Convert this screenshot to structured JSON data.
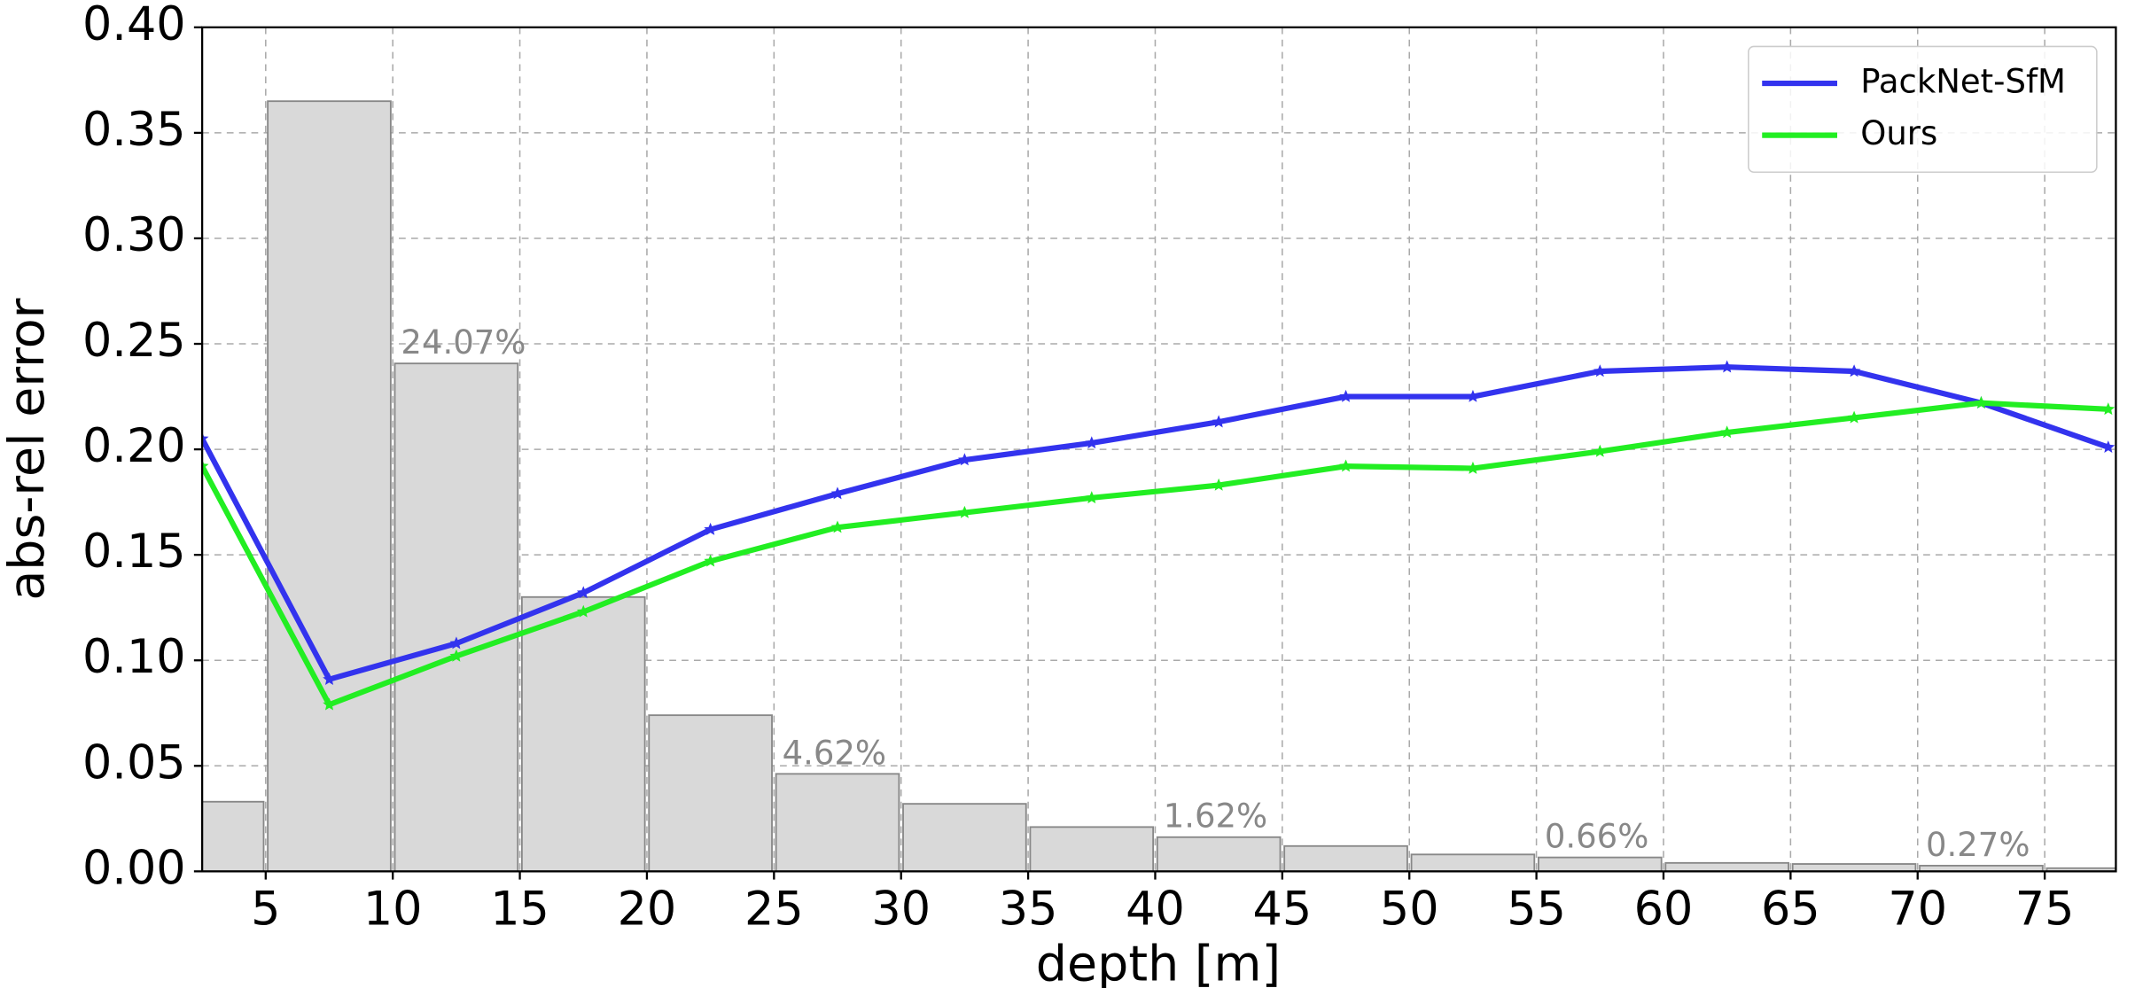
{
  "chart_data": {
    "type": "line",
    "xlabel": "depth [m]",
    "ylabel": "abs-rel error",
    "xlim": [
      2.5,
      77.8
    ],
    "ylim": [
      0,
      0.4
    ],
    "xticks": [
      5,
      10,
      15,
      20,
      25,
      30,
      35,
      40,
      45,
      50,
      55,
      60,
      65,
      70,
      75
    ],
    "yticks": [
      {
        "value": 0,
        "label": "0.00"
      },
      {
        "value": 0.05,
        "label": "0.05"
      },
      {
        "value": 0.1,
        "label": "0.10"
      },
      {
        "value": 0.15,
        "label": "0.15"
      },
      {
        "value": 0.2,
        "label": "0.20"
      },
      {
        "value": 0.25,
        "label": "0.25"
      },
      {
        "value": 0.3,
        "label": "0.30"
      },
      {
        "value": 0.35,
        "label": "0.35"
      },
      {
        "value": 0.4,
        "label": "0.40"
      }
    ],
    "grid": true,
    "legend": "upper right",
    "x": [
      2.5,
      7.5,
      12.5,
      17.5,
      22.5,
      27.5,
      32.5,
      37.5,
      42.5,
      47.5,
      52.5,
      57.5,
      62.5,
      67.5,
      72.5,
      77.5
    ],
    "series": [
      {
        "name": "PackNet-SfM",
        "color": "#3333ee",
        "values": [
          0.205,
          0.091,
          0.108,
          0.132,
          0.162,
          0.179,
          0.195,
          0.203,
          0.213,
          0.225,
          0.225,
          0.237,
          0.239,
          0.237,
          0.222,
          0.201
        ]
      },
      {
        "name": "Ours",
        "color": "#22ee22",
        "values": [
          0.192,
          0.079,
          0.102,
          0.123,
          0.147,
          0.163,
          0.17,
          0.177,
          0.183,
          0.192,
          0.191,
          0.199,
          0.208,
          0.215,
          0.222,
          0.219
        ]
      }
    ],
    "histogram": {
      "color": "#d9d9d9",
      "edgecolor": "#888888",
      "bins": [
        0,
        5,
        10,
        15,
        20,
        25,
        30,
        35,
        40,
        45,
        50,
        55,
        60,
        65,
        70,
        75,
        80
      ],
      "values": [
        0.033,
        0.365,
        0.2407,
        0.13,
        0.074,
        0.0462,
        0.032,
        0.021,
        0.0162,
        0.012,
        0.008,
        0.0066,
        0.004,
        0.0035,
        0.0027,
        0.0015
      ],
      "value_labels": [
        null,
        null,
        "24.07%",
        null,
        null,
        "4.62%",
        null,
        null,
        "1.62%",
        null,
        null,
        "0.66%",
        null,
        null,
        "0.27%",
        null
      ]
    }
  }
}
